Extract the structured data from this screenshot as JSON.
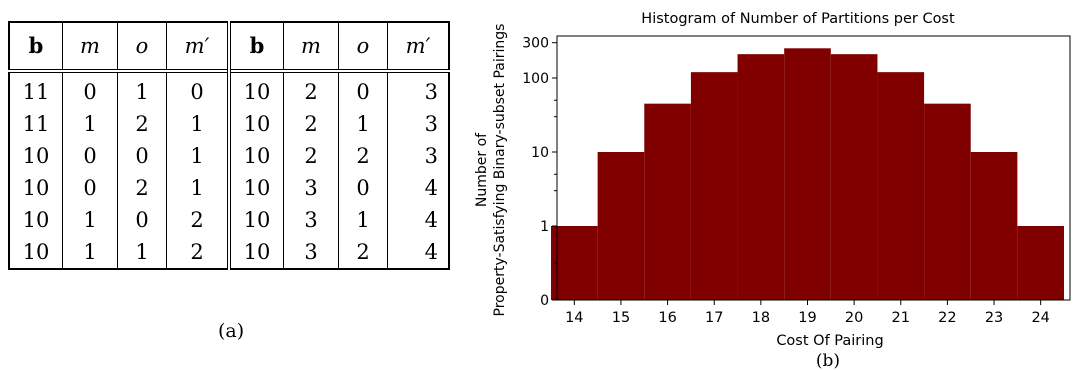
{
  "table": {
    "caption": "(a)",
    "headers": [
      "b",
      "m",
      "o",
      "m′",
      "b",
      "m",
      "o",
      "m′"
    ],
    "rows": [
      [
        "11",
        "0",
        "1",
        "0",
        "10",
        "2",
        "0",
        "3"
      ],
      [
        "11",
        "1",
        "2",
        "1",
        "10",
        "2",
        "1",
        "3"
      ],
      [
        "10",
        "0",
        "0",
        "1",
        "10",
        "2",
        "2",
        "3"
      ],
      [
        "10",
        "0",
        "2",
        "1",
        "10",
        "3",
        "0",
        "4"
      ],
      [
        "10",
        "1",
        "0",
        "2",
        "10",
        "3",
        "1",
        "4"
      ],
      [
        "10",
        "1",
        "1",
        "2",
        "10",
        "3",
        "2",
        "4"
      ]
    ]
  },
  "chart_data": {
    "type": "bar",
    "title": "Histogram of Number of Partitions per Cost",
    "xlabel": "Cost Of Pairing",
    "ylabel": "Number of Property-Satisfying Binary-subset Pairings",
    "caption": "(b)",
    "scale": "log",
    "categories": [
      14,
      15,
      16,
      17,
      18,
      19,
      20,
      21,
      22,
      23,
      24
    ],
    "values": [
      1,
      10,
      45,
      120,
      210,
      252,
      210,
      120,
      45,
      10,
      1
    ],
    "y_ticks": [
      "0",
      "1",
      "10",
      "100",
      "300"
    ],
    "bar_color": "#800000"
  }
}
